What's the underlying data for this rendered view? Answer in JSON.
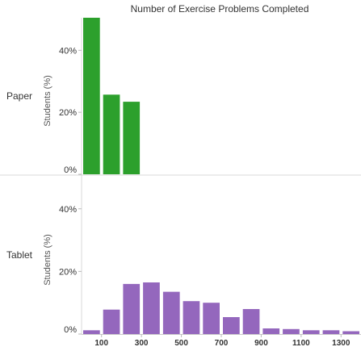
{
  "chart_data": {
    "type": "bar",
    "title": "Number of Exercise Problems Completed",
    "ylabel": "Students (%)",
    "ytick_labels": [
      "0%",
      "20%",
      "40%"
    ],
    "x_ticks": [
      100,
      300,
      500,
      700,
      900,
      1100,
      1300
    ],
    "x_tick_labels": [
      "100",
      "300",
      "500",
      "700",
      "900",
      "1100",
      "1300"
    ],
    "xlim": [
      0,
      1400
    ],
    "ylim": [
      0,
      50.5
    ],
    "bin_width": 100,
    "series": [
      {
        "name": "Paper",
        "color": "#2ca02c",
        "bins": [
          0,
          100,
          200
        ],
        "values": [
          50.5,
          25.7,
          23.4
        ]
      },
      {
        "name": "Tablet",
        "color": "#9467bd",
        "bins": [
          0,
          100,
          200,
          300,
          400,
          500,
          600,
          700,
          800,
          900,
          1000,
          1100,
          1200,
          1300
        ],
        "values": [
          1.2,
          7.8,
          16.0,
          16.5,
          13.5,
          10.5,
          10.0,
          5.4,
          8.0,
          1.8,
          1.6,
          1.2,
          1.2,
          0.9
        ]
      }
    ]
  }
}
